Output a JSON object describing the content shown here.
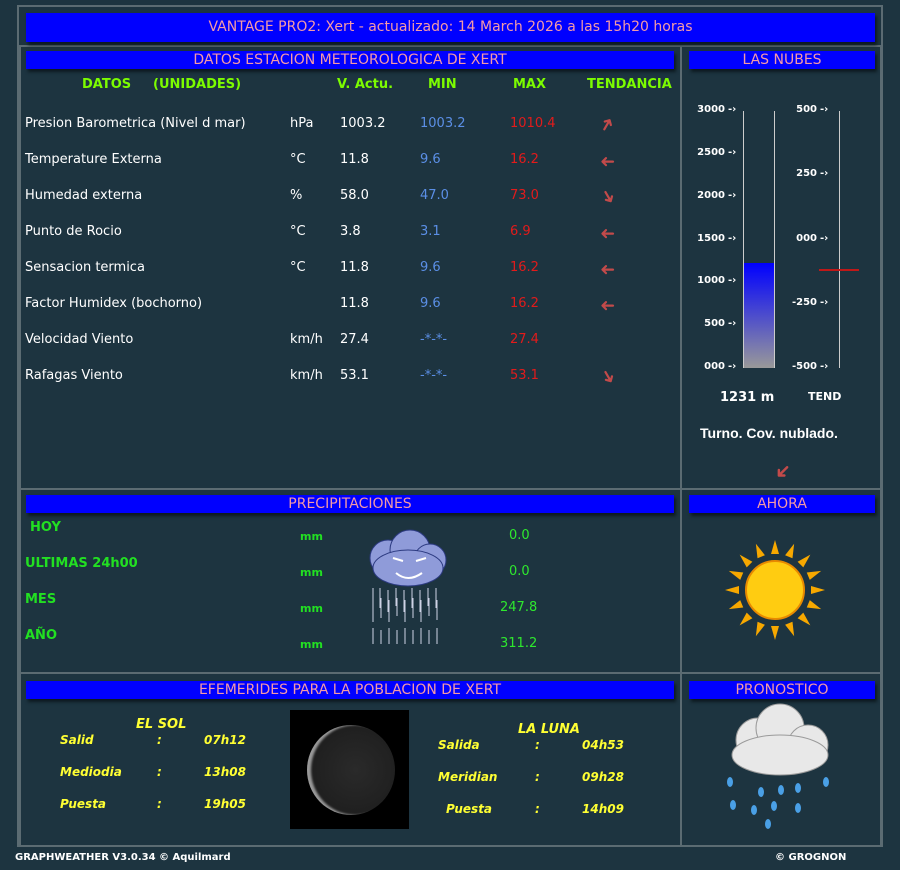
{
  "header": {
    "title": "VANTAGE PRO2: Xert - actualizado: 14 March 2026 a las 15h20 horas"
  },
  "datos": {
    "title": "DATOS ESTACION METEOROLOGICA DE XERT",
    "columns": {
      "datos": "DATOS",
      "unidades": "(UNIDADES)",
      "actual": "V. Actu.",
      "min": "MIN",
      "max": "MAX",
      "tendencia": "TENDANCIA"
    },
    "rows": [
      {
        "label": "Presion Barometrica (Nivel d mar)",
        "unit": "hPa",
        "current": "1003.2",
        "min": "1003.2",
        "max": "1010.4",
        "trend": "up"
      },
      {
        "label": "Temperature Externa",
        "unit": "°C",
        "current": "11.8",
        "min": "9.6",
        "max": "16.2",
        "trend": "steady"
      },
      {
        "label": "Humedad externa",
        "unit": "%",
        "current": "58.0",
        "min": "47.0",
        "max": "73.0",
        "trend": "down"
      },
      {
        "label": "Punto de Rocio",
        "unit": "°C",
        "current": "3.8",
        "min": "3.1",
        "max": "6.9",
        "trend": "steady"
      },
      {
        "label": "Sensacion termica",
        "unit": "°C",
        "current": "11.8",
        "min": "9.6",
        "max": "16.2",
        "trend": "steady"
      },
      {
        "label": "Factor Humidex (bochorno)",
        "unit": "",
        "current": "11.8",
        "min": "9.6",
        "max": "16.2",
        "trend": "steady"
      },
      {
        "label": "Velocidad Viento",
        "unit": "km/h",
        "current": "27.4",
        "min": "-*-*-",
        "max": "27.4",
        "trend": "none"
      },
      {
        "label": "Rafagas Viento",
        "unit": "km/h",
        "current": "53.1",
        "min": "-*-*-",
        "max": "53.1",
        "trend": "down"
      }
    ]
  },
  "nubes": {
    "title": "LAS NUBES",
    "base_ticks": [
      "3000",
      "2500",
      "2000",
      "1500",
      "1000",
      "500",
      "000"
    ],
    "tend_ticks": [
      "500",
      "250",
      "000",
      "-250",
      "-500"
    ],
    "base_value_m": 1231,
    "base_label": "1231 m",
    "tend_value": -115,
    "tend_label": "TEND",
    "description": "Turno. Cov. nublado.",
    "trend": "down"
  },
  "precip": {
    "title": "PRECIPITACIONES",
    "rows": [
      {
        "label": "HOY",
        "unit": "mm",
        "value": "0.0"
      },
      {
        "label": "ULTIMAS 24h00",
        "unit": "mm",
        "value": "0.0"
      },
      {
        "label": "MES",
        "unit": "mm",
        "value": "247.8"
      },
      {
        "label": "AÑO",
        "unit": "mm",
        "value": "311.2"
      }
    ]
  },
  "ahora": {
    "title": "AHORA",
    "icon": "sun-icon"
  },
  "efemerides": {
    "title": "EFEMERIDES PARA LA POBLACION DE XERT",
    "sol": {
      "title": "EL SOL",
      "rows": [
        {
          "label": "Salid",
          "sep": ":",
          "value": "07h12"
        },
        {
          "label": "Mediodia",
          "sep": ":",
          "value": "13h08"
        },
        {
          "label": "Puesta",
          "sep": ":",
          "value": "19h05"
        }
      ]
    },
    "luna": {
      "title": "LA LUNA",
      "rows": [
        {
          "label": "Salida",
          "sep": ":",
          "value": "04h53"
        },
        {
          "label": "Meridian",
          "sep": ":",
          "value": "09h28"
        },
        {
          "label": "Puesta",
          "sep": ":",
          "value": "14h09"
        }
      ]
    }
  },
  "pronostico": {
    "title": "PRONOSTICO",
    "icon": "rain-cloud-icon"
  },
  "footer": {
    "left": "GRAPHWEATHER V3.0.34 © Aquilmard",
    "right": "© GROGNON"
  },
  "colors": {
    "background": "#1d3440",
    "title_bar": "#0000ff",
    "title_text": "#f49aa6",
    "min": "#5b8fe6",
    "max": "#e21b1b",
    "green": "#22e022",
    "yellow": "#ffff33"
  }
}
